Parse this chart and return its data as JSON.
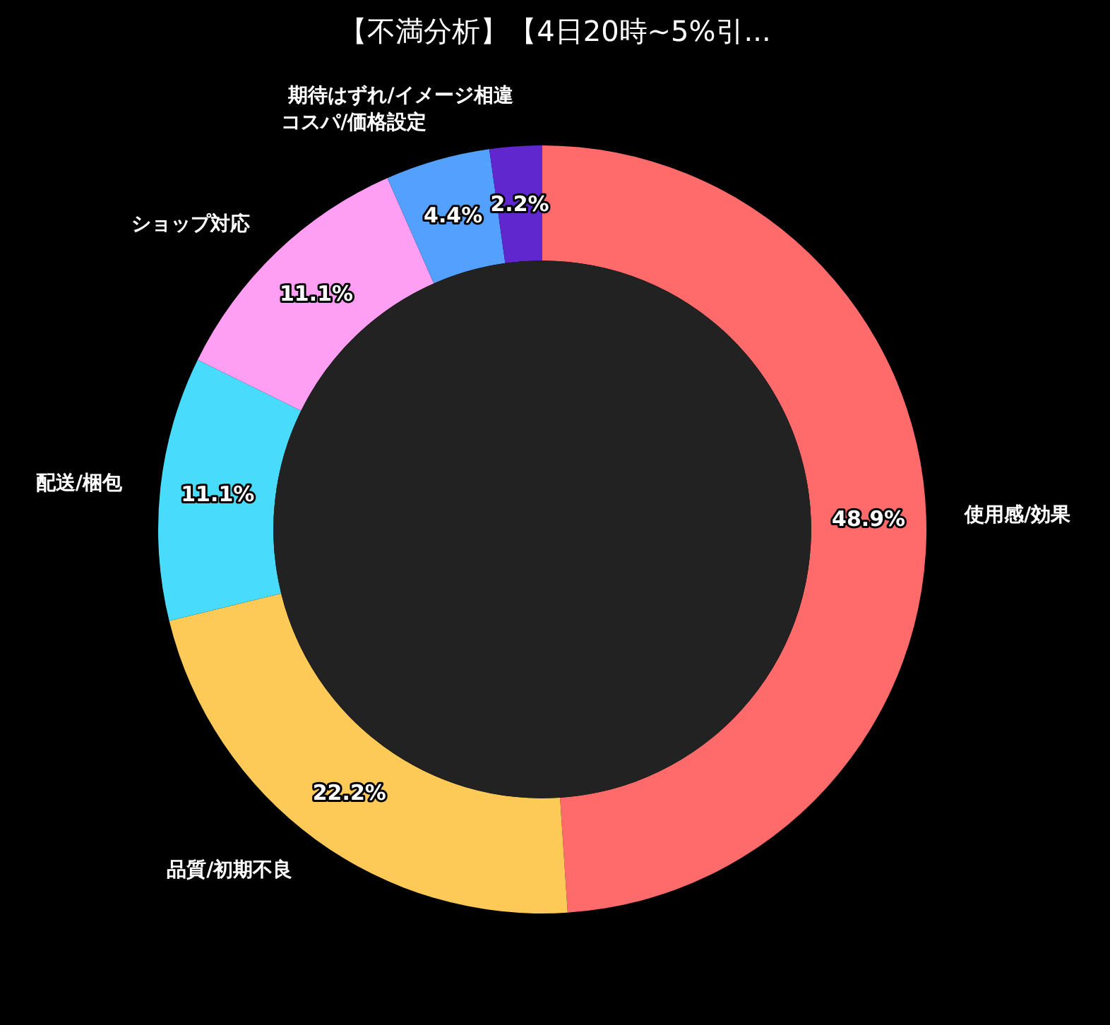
{
  "chart_data": {
    "type": "donut",
    "title": "【不満分析】【4日20時~5%引...",
    "categories": [
      "使用感/効果",
      "品質/初期不良",
      "配送/梱包",
      "ショップ対応",
      "コスパ/価格設定",
      "期待はずれ/イメージ相違"
    ],
    "values": [
      48.9,
      22.2,
      11.1,
      11.1,
      4.4,
      2.2
    ],
    "value_labels": [
      "48.9%",
      "22.2%",
      "11.1%",
      "11.1%",
      "4.4%",
      "2.2%"
    ],
    "colors": [
      "#ff6b6b",
      "#feca57",
      "#48dbfb",
      "#ff9ff3",
      "#54a0ff",
      "#5f27cd"
    ]
  }
}
